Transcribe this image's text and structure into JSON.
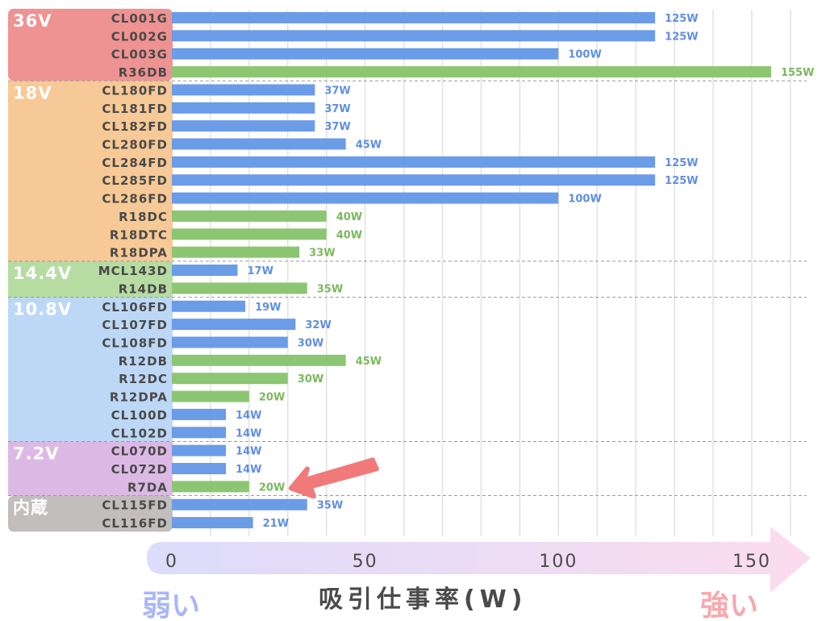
{
  "chart_data": {
    "type": "bar",
    "orientation": "horizontal",
    "xlabel": "吸引仕事率(W)",
    "xlim": [
      0,
      160
    ],
    "xticks": [
      0,
      50,
      100,
      150
    ],
    "grid": true,
    "low_label": "弱い",
    "high_label": "強い",
    "value_suffix": "W",
    "colors": {
      "blue": "#6b9ce8",
      "green": "#8dc672",
      "blue_text": "#5f8fe0",
      "green_text": "#7bb85c",
      "pointer": "#f07a7a"
    },
    "groups": [
      {
        "name": "36V",
        "color": "#ef9292",
        "rows": [
          {
            "model": "CL001G",
            "value": 125,
            "series": "blue"
          },
          {
            "model": "CL002G",
            "value": 125,
            "series": "blue"
          },
          {
            "model": "CL003G",
            "value": 100,
            "series": "blue"
          },
          {
            "model": "R36DB",
            "value": 155,
            "series": "green"
          }
        ]
      },
      {
        "name": "18V",
        "color": "#f6c996",
        "rows": [
          {
            "model": "CL180FD",
            "value": 37,
            "series": "blue"
          },
          {
            "model": "CL181FD",
            "value": 37,
            "series": "blue"
          },
          {
            "model": "CL182FD",
            "value": 37,
            "series": "blue"
          },
          {
            "model": "CL280FD",
            "value": 45,
            "series": "blue"
          },
          {
            "model": "CL284FD",
            "value": 125,
            "series": "blue"
          },
          {
            "model": "CL285FD",
            "value": 125,
            "series": "blue"
          },
          {
            "model": "CL286FD",
            "value": 100,
            "series": "blue"
          },
          {
            "model": "R18DC",
            "value": 40,
            "series": "green"
          },
          {
            "model": "R18DTC",
            "value": 40,
            "series": "green"
          },
          {
            "model": "R18DPA",
            "value": 33,
            "series": "green"
          }
        ]
      },
      {
        "name": "14.4V",
        "color": "#b6dca2",
        "rows": [
          {
            "model": "MCL143D",
            "value": 17,
            "series": "blue"
          },
          {
            "model": "R14DB",
            "value": 35,
            "series": "green"
          }
        ]
      },
      {
        "name": "10.8V",
        "color": "#bdd7f6",
        "rows": [
          {
            "model": "CL106FD",
            "value": 19,
            "series": "blue"
          },
          {
            "model": "CL107FD",
            "value": 32,
            "series": "blue"
          },
          {
            "model": "CL108FD",
            "value": 30,
            "series": "blue"
          },
          {
            "model": "R12DB",
            "value": 45,
            "series": "green"
          },
          {
            "model": "R12DC",
            "value": 30,
            "series": "green"
          },
          {
            "model": "R12DPA",
            "value": 20,
            "series": "green"
          },
          {
            "model": "CL100D",
            "value": 14,
            "series": "blue"
          },
          {
            "model": "CL102D",
            "value": 14,
            "series": "blue"
          }
        ]
      },
      {
        "name": "7.2V",
        "color": "#dcb9e5",
        "rows": [
          {
            "model": "CL070D",
            "value": 14,
            "series": "blue"
          },
          {
            "model": "CL072D",
            "value": 14,
            "series": "blue"
          },
          {
            "model": "R7DA",
            "value": 20,
            "series": "green",
            "highlighted": true
          }
        ]
      },
      {
        "name": "内蔵",
        "color": "#c2bebe",
        "rows": [
          {
            "model": "CL115FD",
            "value": 35,
            "series": "blue"
          },
          {
            "model": "CL116FD",
            "value": 21,
            "series": "blue"
          }
        ]
      }
    ]
  }
}
